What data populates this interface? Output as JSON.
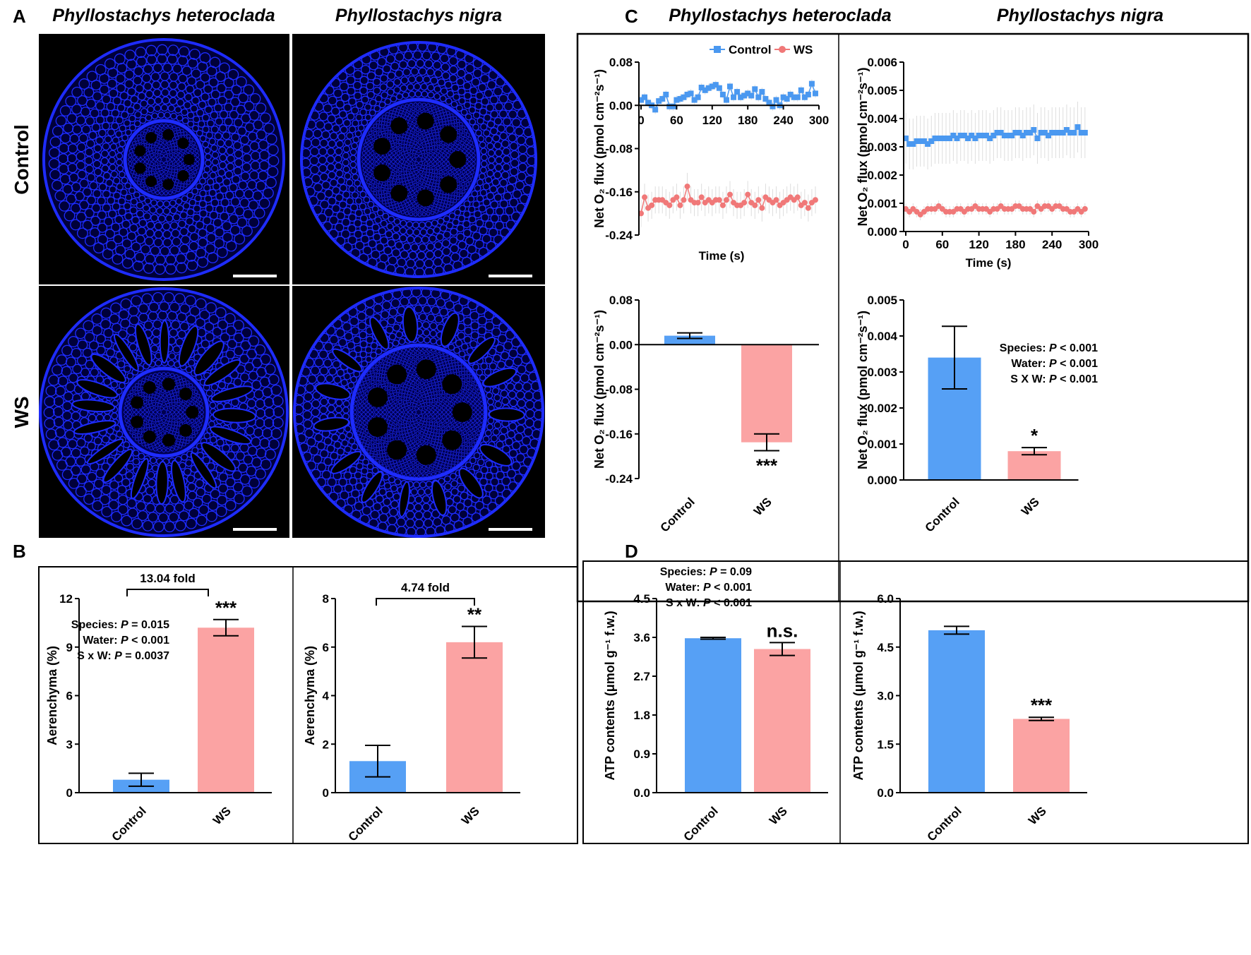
{
  "panels": {
    "A": "A",
    "B": "B",
    "C": "C",
    "D": "D"
  },
  "species": {
    "left": "Phyllostachys heteroclada",
    "right": "Phyllostachys nigra"
  },
  "rows": {
    "control": "Control",
    "ws": "WS"
  },
  "colors": {
    "control": "#56a0f5",
    "ws": "#fba3a3",
    "control_line": "#4a98f0",
    "ws_line": "#f07878",
    "micro": "#1e2cff"
  },
  "legend": {
    "control": "Control",
    "ws": "WS"
  },
  "chart_data": [
    {
      "id": "B1",
      "type": "bar",
      "title": "Phyllostachys heteroclada",
      "ylabel": "Aerenchyma (%)",
      "categories": [
        "Control",
        "WS"
      ],
      "values": [
        0.8,
        10.2
      ],
      "errors": [
        0.4,
        0.5
      ],
      "ylim": [
        0,
        12
      ],
      "yticks": [
        0,
        3,
        6,
        9,
        12
      ],
      "tick_labels": [
        "0",
        "3",
        "6",
        "9",
        "12"
      ],
      "significance": [
        "",
        "***"
      ],
      "bracket": "13.04 fold",
      "stats": [
        [
          "Species: ",
          "P",
          " = 0.015"
        ],
        [
          "Water: ",
          "P",
          " < 0.001"
        ],
        [
          "S x W: ",
          "P",
          " = 0.0037"
        ]
      ]
    },
    {
      "id": "B2",
      "type": "bar",
      "title": "Phyllostachys nigra",
      "ylabel": "Aerenchyma (%)",
      "categories": [
        "Control",
        "WS"
      ],
      "values": [
        1.3,
        6.2
      ],
      "errors": [
        0.65,
        0.65
      ],
      "ylim": [
        0,
        8
      ],
      "yticks": [
        0,
        2,
        4,
        6,
        8
      ],
      "tick_labels": [
        "0",
        "2",
        "4",
        "6",
        "8"
      ],
      "significance": [
        "",
        "**"
      ],
      "bracket": "4.74 fold"
    },
    {
      "id": "C1",
      "type": "line",
      "title": "Phyllostachys heteroclada",
      "ylabel": "Net O₂ flux (pmol cm⁻²s⁻¹)",
      "xlabel": "Time (s)",
      "xlim": [
        0,
        300
      ],
      "xticks": [
        0,
        60,
        120,
        180,
        240,
        300
      ],
      "xtick_labels": [
        "0",
        "60",
        "120",
        "180",
        "240",
        "300"
      ],
      "ylim": [
        -0.24,
        0.08
      ],
      "yticks": [
        0.08,
        0,
        -0.08,
        -0.16,
        -0.24
      ],
      "tick_labels": [
        "0.08",
        "0.00",
        "-0.08",
        "-0.16",
        "-0.24"
      ],
      "x_step": 6,
      "series": [
        {
          "name": "Control",
          "err": 0.008,
          "values": [
            0.01,
            0.015,
            0.005,
            0.0,
            -0.008,
            0.008,
            0.012,
            0.02,
            -0.002,
            -0.002,
            0.01,
            0.012,
            0.015,
            0.02,
            0.022,
            0.01,
            0.015,
            0.033,
            0.028,
            0.032,
            0.035,
            0.038,
            0.032,
            0.02,
            0.01,
            0.035,
            0.015,
            0.025,
            0.015,
            0.018,
            0.022,
            0.018,
            0.03,
            0.015,
            0.025,
            0.012,
            0.005,
            -0.002,
            0.01,
            0.0,
            0.015,
            0.012,
            0.02,
            0.015,
            0.015,
            0.028,
            0.015,
            0.02,
            0.04,
            0.022
          ]
        },
        {
          "name": "WS",
          "err": 0.025,
          "values": [
            -0.2,
            -0.17,
            -0.19,
            -0.185,
            -0.175,
            -0.175,
            -0.175,
            -0.18,
            -0.185,
            -0.175,
            -0.17,
            -0.185,
            -0.175,
            -0.15,
            -0.175,
            -0.18,
            -0.18,
            -0.17,
            -0.18,
            -0.175,
            -0.18,
            -0.175,
            -0.175,
            -0.185,
            -0.175,
            -0.165,
            -0.18,
            -0.185,
            -0.185,
            -0.18,
            -0.165,
            -0.18,
            -0.185,
            -0.175,
            -0.19,
            -0.17,
            -0.175,
            -0.18,
            -0.175,
            -0.185,
            -0.18,
            -0.175,
            -0.17,
            -0.175,
            -0.17,
            -0.185,
            -0.18,
            -0.19,
            -0.18,
            -0.175
          ]
        }
      ]
    },
    {
      "id": "C2",
      "type": "line",
      "title": "Phyllostachys nigra",
      "ylabel": "Net O₂ flux (pmol cm⁻²s⁻¹)",
      "xlabel": "Time (s)",
      "xlim": [
        0,
        300
      ],
      "xticks": [
        0,
        60,
        120,
        180,
        240,
        300
      ],
      "xtick_labels": [
        "0",
        "60",
        "120",
        "180",
        "240",
        "300"
      ],
      "ylim": [
        0,
        0.006
      ],
      "yticks": [
        0,
        0.001,
        0.002,
        0.003,
        0.004,
        0.005,
        0.006
      ],
      "tick_labels": [
        "0.000",
        "0.001",
        "0.002",
        "0.003",
        "0.004",
        "0.005",
        "0.006"
      ],
      "x_step": 6,
      "series": [
        {
          "name": "Control",
          "err": 0.0009,
          "values": [
            0.0033,
            0.0031,
            0.0031,
            0.0032,
            0.0032,
            0.0032,
            0.0031,
            0.0032,
            0.0033,
            0.0033,
            0.0033,
            0.0033,
            0.0033,
            0.0034,
            0.0033,
            0.0034,
            0.0034,
            0.0033,
            0.0034,
            0.0033,
            0.0034,
            0.0034,
            0.0034,
            0.0033,
            0.0034,
            0.0035,
            0.0035,
            0.0034,
            0.0034,
            0.0034,
            0.0035,
            0.0035,
            0.0034,
            0.0035,
            0.0035,
            0.0036,
            0.0033,
            0.0035,
            0.0035,
            0.0034,
            0.0035,
            0.0035,
            0.0035,
            0.0035,
            0.0036,
            0.0035,
            0.0035,
            0.0037,
            0.0035,
            0.0035
          ]
        },
        {
          "name": "WS",
          "err": 0.0002,
          "values": [
            0.0008,
            0.0007,
            0.0008,
            0.0007,
            0.0006,
            0.0007,
            0.0008,
            0.0008,
            0.0008,
            0.0009,
            0.0008,
            0.0007,
            0.0007,
            0.0007,
            0.0008,
            0.0008,
            0.0007,
            0.0008,
            0.0008,
            0.0009,
            0.0008,
            0.0008,
            0.0008,
            0.0007,
            0.0008,
            0.0008,
            0.0009,
            0.0008,
            0.0008,
            0.0008,
            0.0009,
            0.0009,
            0.0008,
            0.0008,
            0.0008,
            0.0007,
            0.0009,
            0.0008,
            0.0009,
            0.0009,
            0.0008,
            0.0009,
            0.0009,
            0.0008,
            0.0008,
            0.0007,
            0.0007,
            0.0008,
            0.0007,
            0.0008
          ]
        }
      ]
    },
    {
      "id": "C3",
      "type": "bar",
      "title": "Phyllostachys heteroclada",
      "ylabel": "Net O₂ flux (pmol cm⁻²s⁻¹)",
      "categories": [
        "Control",
        "WS"
      ],
      "values": [
        0.016,
        -0.175
      ],
      "errors": [
        0.005,
        0.015
      ],
      "ylim": [
        -0.24,
        0.08
      ],
      "yticks": [
        0.08,
        0,
        -0.08,
        -0.16,
        -0.24
      ],
      "tick_labels": [
        "0.08",
        "0.00",
        "-0.08",
        "-0.16",
        "-0.24"
      ],
      "significance": [
        "",
        "***"
      ]
    },
    {
      "id": "C4",
      "type": "bar",
      "title": "Phyllostachys nigra",
      "ylabel": "Net O₂ flux (pmol cm⁻²s⁻¹)",
      "categories": [
        "Control",
        "WS"
      ],
      "values": [
        0.0034,
        0.0008
      ],
      "errors": [
        0.00087,
        0.0001
      ],
      "ylim": [
        0,
        0.005
      ],
      "yticks": [
        0,
        0.001,
        0.002,
        0.003,
        0.004,
        0.005
      ],
      "tick_labels": [
        "0.000",
        "0.001",
        "0.002",
        "0.003",
        "0.004",
        "0.005"
      ],
      "significance": [
        "",
        "*"
      ],
      "stats": [
        [
          "Species: ",
          "P",
          " < 0.001"
        ],
        [
          "Water: ",
          "P",
          " < 0.001"
        ],
        [
          "S X W: ",
          "P",
          " < 0.001"
        ]
      ]
    },
    {
      "id": "D1",
      "type": "bar",
      "title": "Phyllostachys heteroclada",
      "ylabel": "ATP contents (μmol g⁻¹ f.w.)",
      "categories": [
        "Control",
        "WS"
      ],
      "values": [
        3.58,
        3.33
      ],
      "errors": [
        0.02,
        0.15
      ],
      "ylim": [
        0,
        4.5
      ],
      "yticks": [
        0,
        0.9,
        1.8,
        2.7,
        3.6,
        4.5
      ],
      "tick_labels": [
        "0.0",
        "0.9",
        "1.8",
        "2.7",
        "3.6",
        "4.5"
      ],
      "significance": [
        "",
        "n.s."
      ],
      "stats": [
        [
          "Species: ",
          "P",
          " = 0.09"
        ],
        [
          "Water: ",
          "P",
          " < 0.001"
        ],
        [
          "S x W: ",
          "P",
          " < 0.001"
        ]
      ]
    },
    {
      "id": "D2",
      "type": "bar",
      "title": "Phyllostachys nigra",
      "ylabel": "ATP contents (μmol g⁻¹ f.w.)",
      "categories": [
        "Control",
        "WS"
      ],
      "values": [
        5.02,
        2.28
      ],
      "errors": [
        0.12,
        0.05
      ],
      "ylim": [
        0,
        6
      ],
      "yticks": [
        0,
        1.5,
        3,
        4.5,
        6
      ],
      "tick_labels": [
        "0.0",
        "1.5",
        "3.0",
        "4.5",
        "6.0"
      ],
      "significance": [
        "",
        "***"
      ]
    }
  ]
}
